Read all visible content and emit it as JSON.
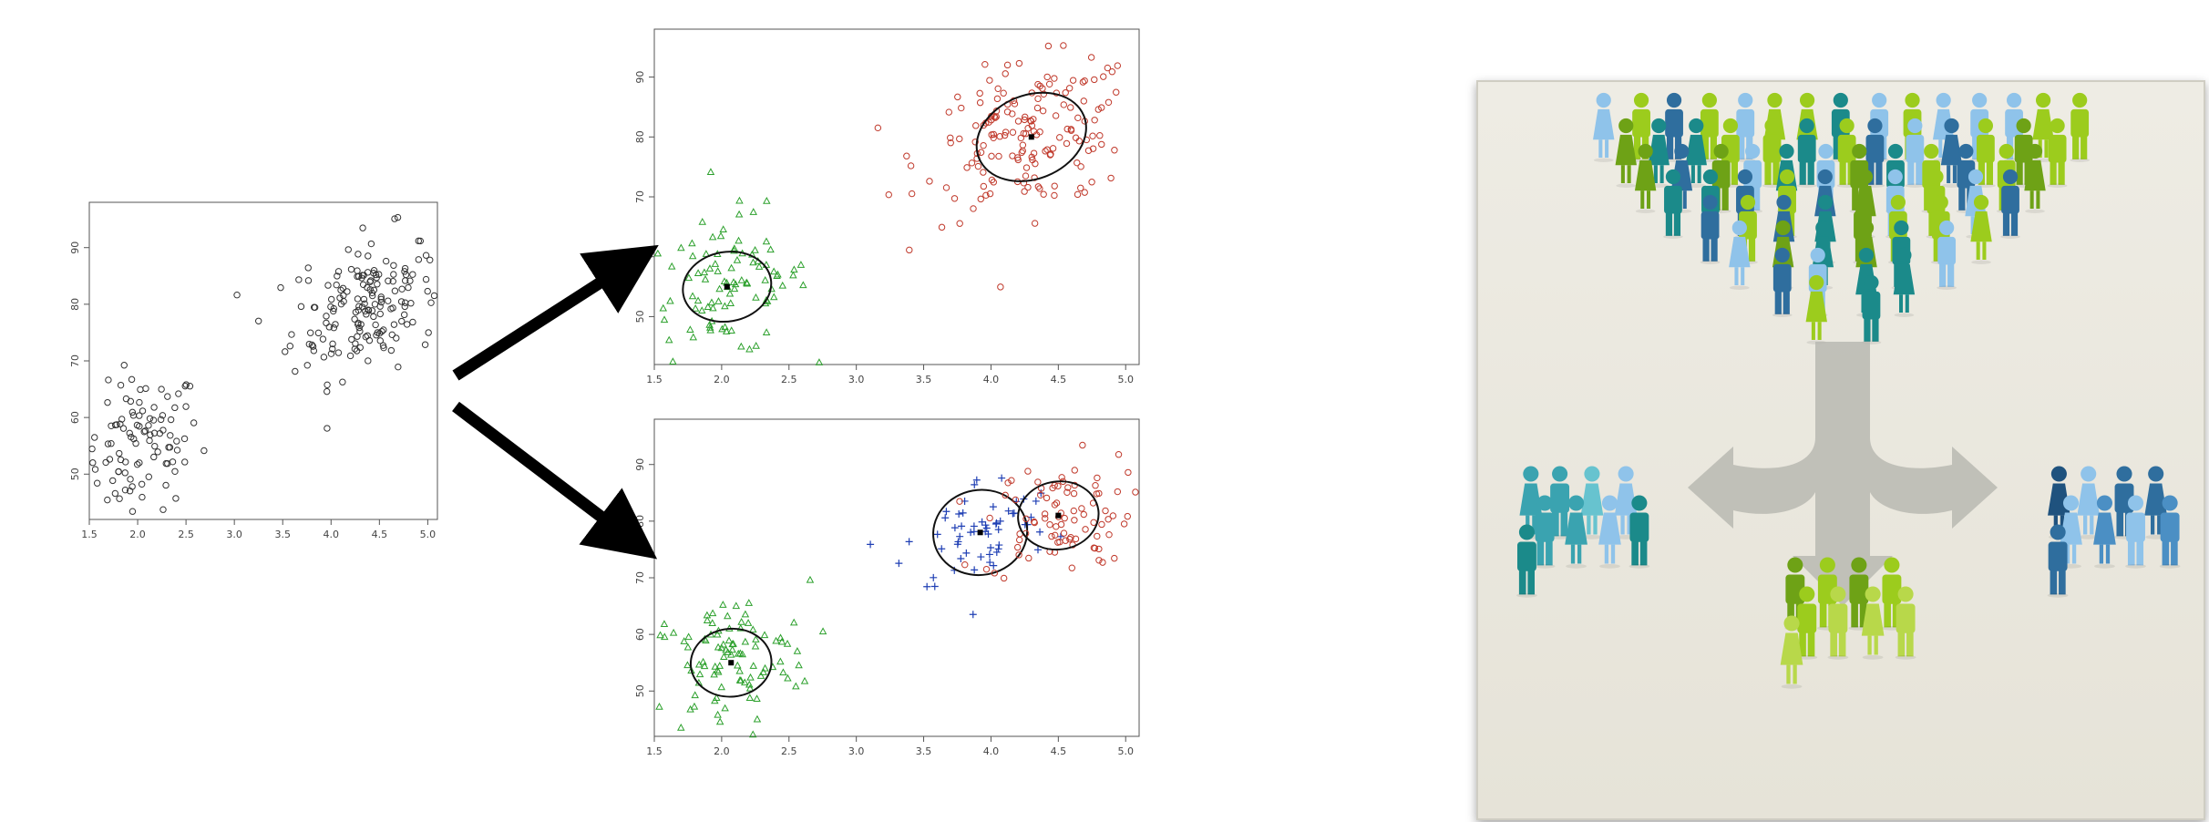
{
  "colors": {
    "unclustered": "#333333",
    "cluster_red": "#c0392b",
    "cluster_green": "#2ca02c",
    "cluster_blue": "#1f3fb4",
    "arrow": "#000000",
    "panel_bg": "#ebe9e0",
    "people_light_blue": "#8fc3ea",
    "people_teal": "#1b8a8a",
    "people_lime": "#9ccc1d",
    "people_green": "#6ea216",
    "people_dark_blue": "#2f6e9e",
    "funnel_gray": "#b9b8b2"
  },
  "chart_data": [
    {
      "type": "scatter",
      "title": "",
      "xlabel": "",
      "ylabel": "",
      "xlim": [
        1.5,
        5.1
      ],
      "ylim": [
        42,
        98
      ],
      "x_ticks": [
        "1.5",
        "2.0",
        "2.5",
        "3.0",
        "3.5",
        "4.0",
        "4.5",
        "5.0"
      ],
      "y_ticks": [
        "50",
        "60",
        "70",
        "80",
        "90"
      ],
      "grid": false,
      "legend": "none",
      "series": [
        {
          "marker": "circle",
          "color": "black",
          "count": 270,
          "groups": [
            {
              "center": [
                2.05,
                55
              ],
              "spread": [
                0.3,
                6
              ],
              "n": 100
            },
            {
              "center": [
                4.35,
                80
              ],
              "spread": [
                0.38,
                6
              ],
              "n": 170
            }
          ]
        }
      ]
    },
    {
      "type": "scatter",
      "title": "",
      "xlabel": "",
      "ylabel": "",
      "xlim": [
        1.5,
        5.1
      ],
      "ylim": [
        42,
        98
      ],
      "x_ticks": [
        "1.5",
        "2.0",
        "2.5",
        "3.0",
        "3.5",
        "4.0",
        "4.5",
        "5.0"
      ],
      "y_ticks": [
        "50",
        "60",
        "70",
        "80",
        "90"
      ],
      "grid": false,
      "legend": "none",
      "series": [
        {
          "marker": "triangle",
          "color": "green",
          "count": 100,
          "groups": [
            {
              "center": [
                2.05,
                55
              ],
              "spread": [
                0.3,
                6
              ],
              "n": 100
            }
          ],
          "ellipse": {
            "center": [
              2.04,
              55
            ],
            "radii": [
              0.33,
              5.8
            ],
            "angle": 10
          }
        },
        {
          "marker": "circle",
          "color": "red",
          "count": 170,
          "groups": [
            {
              "center": [
                4.3,
                80
              ],
              "spread": [
                0.4,
                6
              ],
              "n": 170
            }
          ],
          "ellipse": {
            "center": [
              4.3,
              80
            ],
            "radii": [
              0.42,
              7.0
            ],
            "angle": 22
          }
        }
      ]
    },
    {
      "type": "scatter",
      "title": "",
      "xlabel": "",
      "ylabel": "",
      "xlim": [
        1.5,
        5.1
      ],
      "ylim": [
        42,
        98
      ],
      "x_ticks": [
        "1.5",
        "2.0",
        "2.5",
        "3.0",
        "3.5",
        "4.0",
        "4.5",
        "5.0"
      ],
      "y_ticks": [
        "50",
        "60",
        "70",
        "80",
        "90"
      ],
      "grid": false,
      "legend": "none",
      "series": [
        {
          "marker": "triangle",
          "color": "green",
          "count": 100,
          "groups": [
            {
              "center": [
                2.05,
                55
              ],
              "spread": [
                0.3,
                6
              ],
              "n": 100
            }
          ],
          "ellipse": {
            "center": [
              2.07,
              55
            ],
            "radii": [
              0.3,
              6.0
            ],
            "angle": 5
          }
        },
        {
          "marker": "plus",
          "color": "blue",
          "count": 60,
          "groups": [
            {
              "center": [
                3.92,
                78
              ],
              "spread": [
                0.28,
                5
              ],
              "n": 60
            }
          ],
          "ellipse": {
            "center": [
              3.92,
              78
            ],
            "radii": [
              0.35,
              7.5
            ],
            "angle": 10
          }
        },
        {
          "marker": "circle",
          "color": "red",
          "count": 90,
          "groups": [
            {
              "center": [
                4.5,
                81
              ],
              "spread": [
                0.28,
                5
              ],
              "n": 90
            }
          ],
          "ellipse": {
            "center": [
              4.5,
              81
            ],
            "radii": [
              0.3,
              6.0
            ],
            "angle": 8
          }
        }
      ]
    }
  ],
  "illustration": {
    "description_icons": [
      "people-crowd-icon",
      "split-arrow-icon",
      "people-group-icon"
    ]
  }
}
